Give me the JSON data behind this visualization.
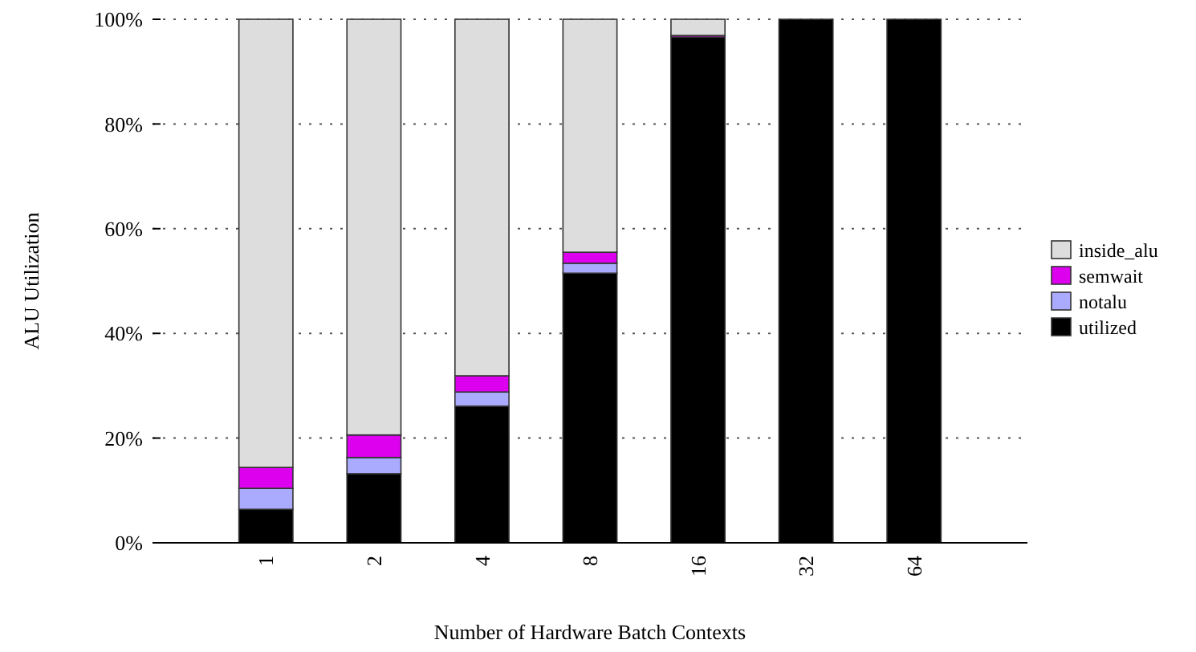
{
  "chart_data": {
    "type": "bar",
    "stacked": true,
    "xlabel": "Number of Hardware Batch Contexts",
    "ylabel": "ALU Utilization",
    "categories": [
      "1",
      "2",
      "4",
      "8",
      "16",
      "32",
      "64"
    ],
    "series": [
      {
        "name": "utilized",
        "color": "#000000",
        "values": [
          6.4,
          13.2,
          26.1,
          51.5,
          96.6,
          100,
          100
        ]
      },
      {
        "name": "notalu",
        "color": "#aaaaff",
        "values": [
          4.0,
          3.1,
          2.7,
          1.9,
          0,
          0,
          0
        ]
      },
      {
        "name": "semwait",
        "color": "#dd00ee",
        "values": [
          4.0,
          4.3,
          3.1,
          2.1,
          0.3,
          0,
          0
        ]
      },
      {
        "name": "inside_alu",
        "color": "#dddddd",
        "values": [
          85.6,
          79.4,
          68.1,
          44.5,
          3.1,
          0,
          0
        ]
      }
    ],
    "ylim": [
      0,
      100
    ],
    "yticks": [
      {
        "value": 0,
        "label": "0%"
      },
      {
        "value": 20,
        "label": "20%"
      },
      {
        "value": 40,
        "label": "40%"
      },
      {
        "value": 60,
        "label": "60%"
      },
      {
        "value": 80,
        "label": "80%"
      },
      {
        "value": 100,
        "label": "100%"
      }
    ],
    "grid": "y",
    "legend": "right"
  }
}
